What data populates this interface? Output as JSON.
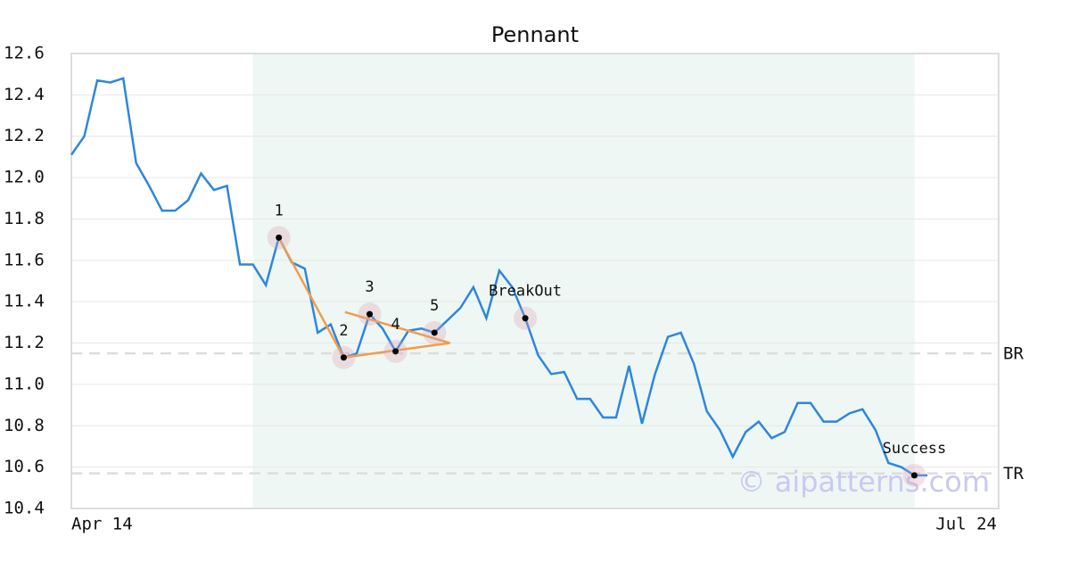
{
  "chart_data": {
    "type": "line",
    "title": "Pennant",
    "xlim": [
      0,
      71.5
    ],
    "xticks": [
      {
        "value": 0,
        "label": "Apr 14"
      },
      {
        "value": 71.5,
        "label": "Jul 24"
      }
    ],
    "ylim": [
      10.4,
      12.6
    ],
    "yticks": [
      10.4,
      10.6,
      10.8,
      {
        "value": 11,
        "label": "11.0"
      },
      11.2,
      11.4,
      11.6,
      11.8,
      {
        "value": 12,
        "label": "12.0"
      },
      12.2,
      12.4,
      12.6
    ],
    "grid": true,
    "shade": [
      14,
      65
    ],
    "series": [
      {
        "color": "#2e86de",
        "values": [
          12.11,
          12.2,
          12.47,
          12.46,
          12.48,
          12.07,
          11.96,
          11.84,
          11.84,
          11.89,
          12.02,
          11.94,
          11.96,
          11.58,
          11.58,
          11.48,
          11.71,
          11.59,
          11.56,
          11.25,
          11.29,
          11.13,
          11.15,
          11.34,
          11.27,
          11.16,
          11.26,
          11.27,
          11.25,
          11.31,
          11.37,
          11.47,
          11.32,
          11.55,
          11.47,
          11.32,
          11.14,
          11.05,
          11.06,
          10.93,
          10.93,
          10.84,
          10.84,
          11.09,
          10.81,
          11.05,
          11.23,
          11.25,
          11.1,
          10.87,
          10.78,
          10.65,
          10.77,
          10.82,
          10.74,
          10.77,
          10.91,
          10.91,
          10.82,
          10.82,
          10.86,
          10.88,
          10.78,
          10.62,
          10.6,
          10.56,
          10.56
        ]
      }
    ],
    "trendlines": [
      {
        "color": "#f39c4a",
        "x": [
          16,
          21
        ],
        "y": [
          11.71,
          11.13
        ]
      },
      {
        "color": "#f39c4a",
        "x": [
          21,
          29.2
        ],
        "y": [
          11.13,
          11.2
        ]
      },
      {
        "color": "#f39c4a",
        "x": [
          21.1,
          29.2
        ],
        "y": [
          11.35,
          11.2
        ]
      }
    ],
    "hlines": [
      {
        "label": "BR",
        "value": 11.15
      },
      {
        "label": "TR",
        "value": 10.57
      }
    ],
    "points": [
      {
        "label": "1",
        "x": 16,
        "y": 11.71
      },
      {
        "label": "2",
        "x": 21,
        "y": 11.13
      },
      {
        "label": "3",
        "x": 23,
        "y": 11.34
      },
      {
        "label": "4",
        "x": 25,
        "y": 11.16
      },
      {
        "label": "5",
        "x": 28,
        "y": 11.25
      },
      {
        "label": "BreakOut",
        "x": 35,
        "y": 11.32
      },
      {
        "label": "Success",
        "x": 65,
        "y": 10.56
      }
    ],
    "watermark": "© aipatterns.com"
  }
}
